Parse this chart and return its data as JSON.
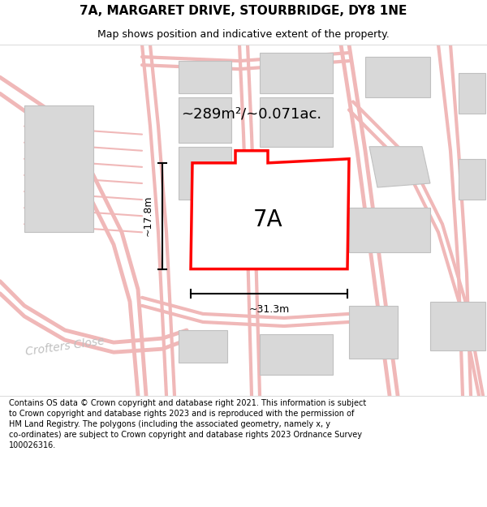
{
  "title_line1": "7A, MARGARET DRIVE, STOURBRIDGE, DY8 1NE",
  "title_line2": "Map shows position and indicative extent of the property.",
  "area_text": "~289m²/~0.071ac.",
  "label_7a": "7A",
  "dim_width": "~31.3m",
  "dim_height": "~17.8m",
  "footer_text": "Contains OS data © Crown copyright and database right 2021. This information is subject\nto Crown copyright and database rights 2023 and is reproduced with the permission of\nHM Land Registry. The polygons (including the associated geometry, namely x, y\nco-ordinates) are subject to Crown copyright and database rights 2023 Ordnance Survey\n100026316.",
  "bg_color": "#ffffff",
  "map_bg": "#ffffff",
  "plot_fill": "#ffffff",
  "plot_edge": "#ff0000",
  "road_color": "#f0b8b8",
  "building_color": "#d8d8d8",
  "building_edge": "#c0c0c0",
  "dim_color": "#000000",
  "title_color": "#000000",
  "footer_color": "#000000"
}
